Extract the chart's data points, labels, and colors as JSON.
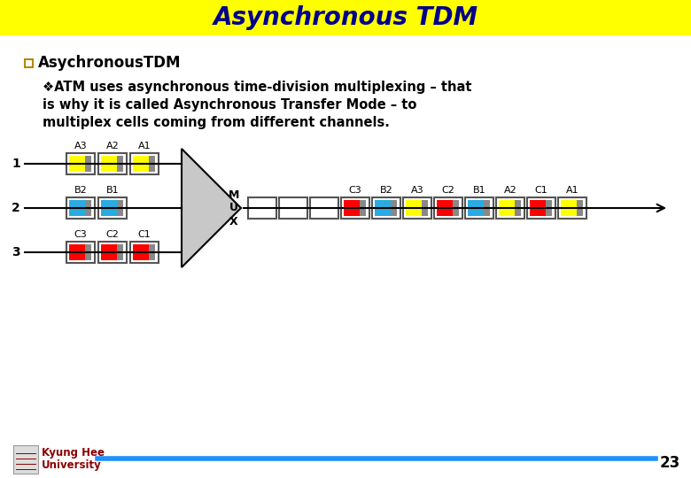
{
  "title": "Asynchronous TDM",
  "title_bg": "#FFFF00",
  "title_color": "#00008B",
  "title_fontsize": 20,
  "bullet1": "AsychronousTDM",
  "bullet2_line1": "❖ATM uses asynchronous time-division multiplexing – that",
  "bullet2_line2": "is why it is called Asynchronous Transfer Mode – to",
  "bullet2_line3": "multiplex cells coming from different channels.",
  "footer_text1": "Kyung Hee",
  "footer_text2": "University",
  "page_num": "23",
  "bg_color": "#FFFFFF",
  "text_color": "#000000",
  "line1_labels": [
    "A3",
    "A2",
    "A1"
  ],
  "line1_colors": [
    "#FFFF00",
    "#FFFF00",
    "#FFFF00"
  ],
  "line2_labels": [
    "B2",
    "B1"
  ],
  "line2_colors": [
    "#29ABE2",
    "#29ABE2"
  ],
  "line3_labels": [
    "C3",
    "C2",
    "C1"
  ],
  "line3_colors": [
    "#FF0000",
    "#FF0000",
    "#FF0000"
  ],
  "output_labels": [
    "C3",
    "B2",
    "A3",
    "C2",
    "B1",
    "A2",
    "C1",
    "A1"
  ],
  "output_colors": [
    "#FF0000",
    "#29ABE2",
    "#FFFF00",
    "#FF0000",
    "#29ABE2",
    "#FFFF00",
    "#FF0000",
    "#FFFF00"
  ],
  "mux_color": "#C8C8C8",
  "empty_slots": 3,
  "footer_line_color": "#1E90FF",
  "bullet_color": "#B8860B",
  "footer_text_color": "#8B0000"
}
